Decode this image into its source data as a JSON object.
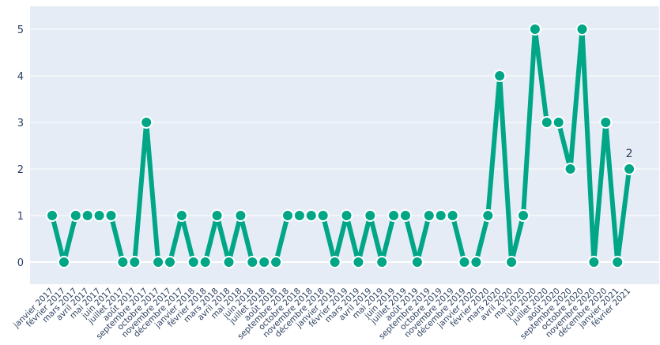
{
  "chart_data": {
    "type": "line",
    "title": "",
    "xlabel": "",
    "ylabel": "",
    "ylim": [
      0,
      5
    ],
    "yticks": [
      0,
      1,
      2,
      3,
      4,
      5
    ],
    "grid": true,
    "line_color": "#00a686",
    "plot_bg": "#e5ecf6",
    "grid_color": "#ffffff",
    "text_color": "#2a3f5f",
    "categories": [
      "janvier 2017",
      "février 2017",
      "mars 2017",
      "avril 2017",
      "mai 2017",
      "juin 2017",
      "juillet 2017",
      "août 2017",
      "septembre 2017",
      "octobre 2017",
      "novembre 2017",
      "décembre 2017",
      "janvier 2018",
      "février 2018",
      "mars 2018",
      "avril 2018",
      "mai 2018",
      "juin 2018",
      "juillet 2018",
      "août 2018",
      "septembre 2018",
      "octobre 2018",
      "novembre 2018",
      "décembre 2018",
      "janvier 2019",
      "février 2019",
      "mars 2019",
      "avril 2019",
      "mai 2019",
      "juin 2019",
      "juillet 2019",
      "août 2019",
      "septembre 2019",
      "octobre 2019",
      "novembre 2019",
      "décembre 2019",
      "janvier 2020",
      "février 2020",
      "mars 2020",
      "avril 2020",
      "mai 2020",
      "juin 2020",
      "juillet 2020",
      "août 2020",
      "septembre 2020",
      "octobre 2020",
      "novembre 2020",
      "décembre 2020",
      "janvier 2021",
      "février 2021"
    ],
    "values": [
      1,
      0,
      1,
      1,
      1,
      1,
      0,
      0,
      3,
      0,
      0,
      1,
      0,
      0,
      1,
      0,
      1,
      0,
      0,
      0,
      1,
      1,
      1,
      1,
      0,
      1,
      0,
      1,
      0,
      1,
      1,
      0,
      1,
      1,
      1,
      0,
      0,
      1,
      4,
      0,
      1,
      5,
      3,
      3,
      2,
      5,
      0,
      3,
      0,
      2
    ],
    "last_point_label": "2"
  }
}
